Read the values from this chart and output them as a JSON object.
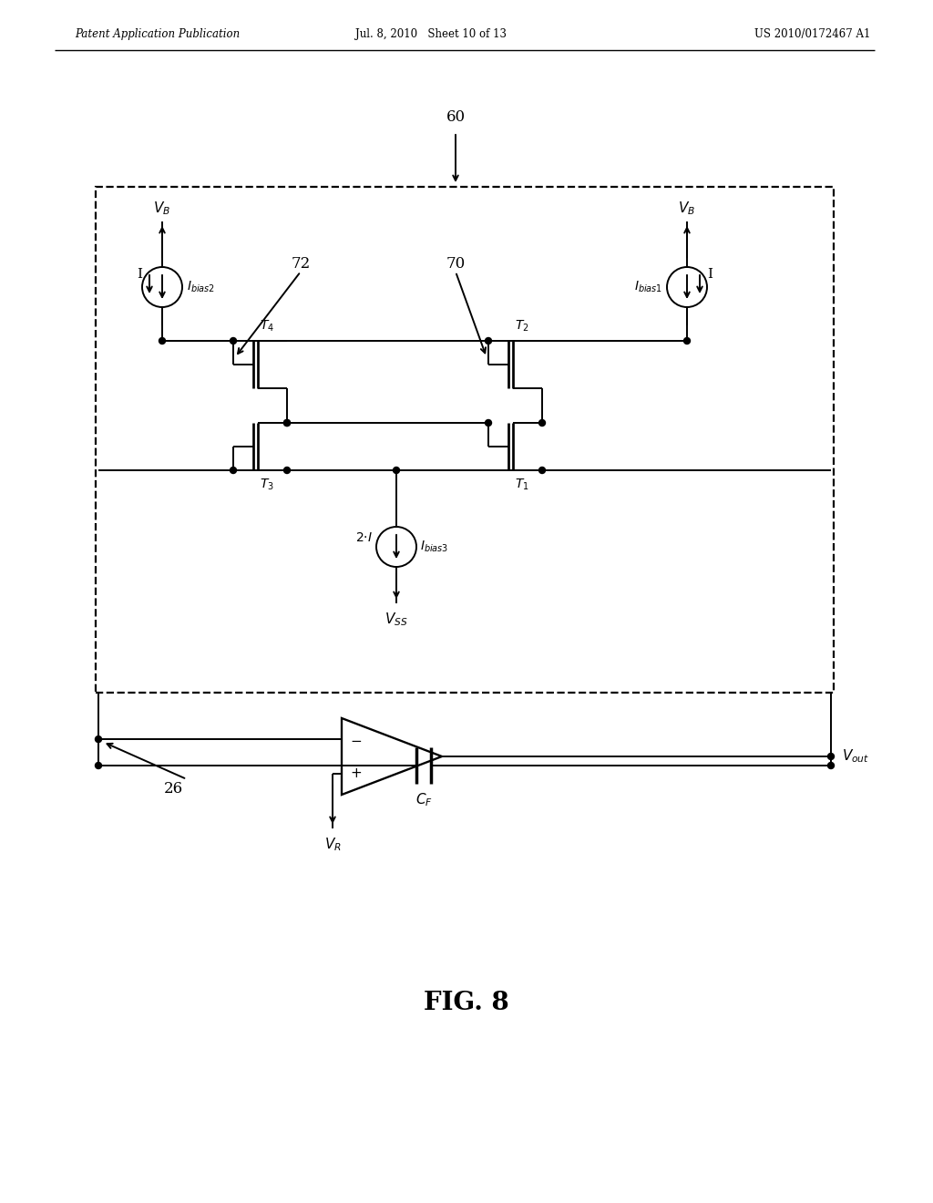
{
  "header_left": "Patent Application Publication",
  "header_center": "Jul. 8, 2010   Sheet 10 of 13",
  "header_right": "US 2010/0172467 A1",
  "figure_label": "FIG. 8",
  "background_color": "#ffffff",
  "text_color": "#000000",
  "line_color": "#000000"
}
